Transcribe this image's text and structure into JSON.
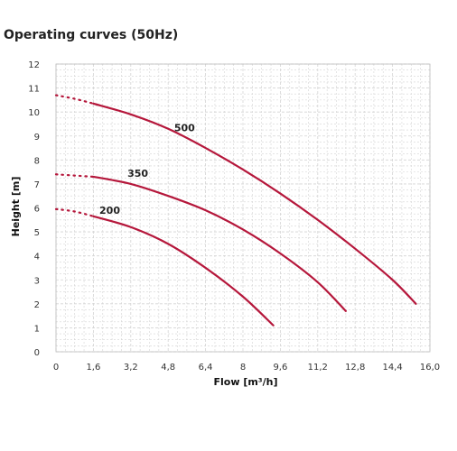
{
  "chart_data": {
    "type": "line",
    "title": "Operating curves (50Hz)",
    "xlabel": "Flow [m³/h]",
    "ylabel": "Height [m]",
    "xlim": [
      0,
      16
    ],
    "ylim": [
      0,
      12
    ],
    "x_ticks": [
      "0",
      "1,6",
      "3,2",
      "4,8",
      "6,4",
      "8",
      "9,6",
      "11,2",
      "12,8",
      "14,4",
      "16,0"
    ],
    "y_ticks": [
      "0",
      "1",
      "2",
      "3",
      "4",
      "5",
      "6",
      "7",
      "8",
      "9",
      "10",
      "11",
      "12"
    ],
    "grid": true,
    "colors": {
      "series": "#b5173b",
      "grid": "#d4d4d4"
    },
    "series": [
      {
        "name": "500",
        "dotted": [
          [
            0,
            10.7
          ],
          [
            0.8,
            10.55
          ],
          [
            1.6,
            10.35
          ]
        ],
        "points": [
          [
            1.6,
            10.35
          ],
          [
            3.2,
            9.9
          ],
          [
            4.8,
            9.3
          ],
          [
            6.4,
            8.5
          ],
          [
            8.0,
            7.6
          ],
          [
            9.6,
            6.6
          ],
          [
            11.2,
            5.5
          ],
          [
            12.8,
            4.3
          ],
          [
            14.4,
            3.0
          ],
          [
            15.4,
            2.0
          ]
        ],
        "label_at": [
          5.5,
          9.2
        ]
      },
      {
        "name": "350",
        "dotted": [
          [
            0,
            7.4
          ],
          [
            0.8,
            7.35
          ],
          [
            1.6,
            7.3
          ]
        ],
        "points": [
          [
            1.6,
            7.3
          ],
          [
            3.2,
            7.0
          ],
          [
            4.8,
            6.5
          ],
          [
            6.4,
            5.9
          ],
          [
            8.0,
            5.1
          ],
          [
            9.6,
            4.1
          ],
          [
            11.2,
            2.9
          ],
          [
            12.4,
            1.7
          ]
        ],
        "label_at": [
          3.5,
          7.3
        ]
      },
      {
        "name": "200",
        "dotted": [
          [
            0,
            5.95
          ],
          [
            0.8,
            5.85
          ],
          [
            1.6,
            5.65
          ]
        ],
        "points": [
          [
            1.6,
            5.65
          ],
          [
            3.2,
            5.2
          ],
          [
            4.8,
            4.5
          ],
          [
            6.4,
            3.5
          ],
          [
            8.0,
            2.3
          ],
          [
            9.3,
            1.1
          ]
        ],
        "label_at": [
          2.3,
          5.75
        ]
      }
    ]
  }
}
